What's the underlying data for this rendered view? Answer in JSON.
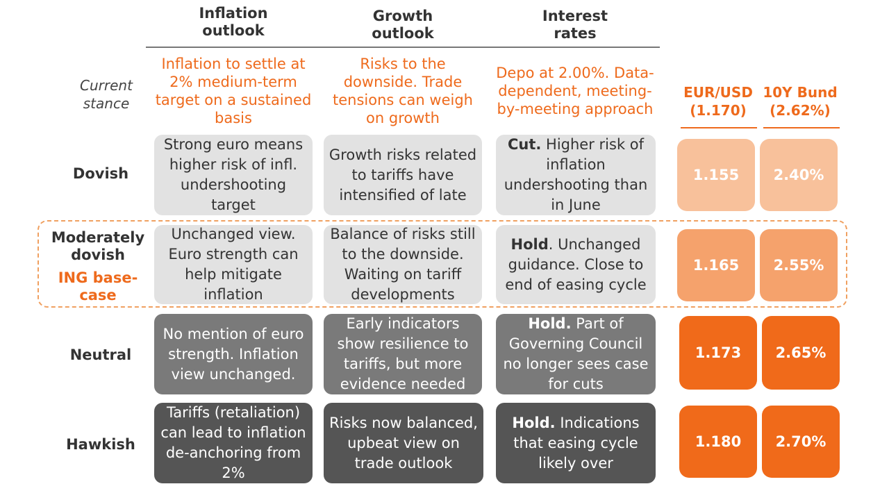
{
  "columns": [
    {
      "title": "Inflation\noutlook"
    },
    {
      "title": "Growth\noutlook"
    },
    {
      "title": "Interest\nrates"
    }
  ],
  "current": {
    "label": "Current\nstance",
    "texts": [
      "Inflation to settle at 2% medium-term target on a sustained basis",
      "Risks to the downside. Trade tensions can weigh on growth",
      "Depo at 2.00%. Data-dependent, meeting-by-meeting approach"
    ]
  },
  "markets": {
    "headers": [
      "EUR/USD\n(1.170)",
      "10Y Bund\n(2.62%)"
    ]
  },
  "scenarios": [
    {
      "label": "Dovish",
      "cells": [
        {
          "bold": "",
          "text": "Strong euro means higher risk of infl. undershooting target"
        },
        {
          "bold": "",
          "text": "Growth risks related to tariffs have intensified of late"
        },
        {
          "bold": "Cut.",
          "text": " Higher risk of inflation undershooting than in June"
        }
      ],
      "eurusd": "1.155",
      "bund": "2.40%"
    },
    {
      "label": "Moderately dovish",
      "sublabel": "ING base-case",
      "cells": [
        {
          "bold": "",
          "text": "Unchanged view. Euro strength can help mitigate inflation"
        },
        {
          "bold": "",
          "text": "Balance of risks still to the downside. Waiting on tariff developments"
        },
        {
          "bold": "Hold",
          "text": ". Unchanged guidance. Close to end of easing cycle"
        }
      ],
      "eurusd": "1.165",
      "bund": "2.55%"
    },
    {
      "label": "Neutral",
      "cells": [
        {
          "bold": "",
          "text": "No mention of euro strength. Inflation view unchanged."
        },
        {
          "bold": "",
          "text": "Early indicators show resilience to tariffs, but more evidence needed"
        },
        {
          "bold": "Hold.",
          "text": " Part of Governing Council no longer sees case for cuts"
        }
      ],
      "eurusd": "1.173",
      "bund": "2.65%"
    },
    {
      "label": "Hawkish",
      "cells": [
        {
          "bold": "",
          "text": "Tariffs (retaliation) can lead to inflation de-anchoring from 2%"
        },
        {
          "bold": "",
          "text": "Risks now balanced, upbeat view on trade outlook"
        },
        {
          "bold": "Hold.",
          "text": " Indications that easing cycle likely over"
        }
      ],
      "eurusd": "1.180",
      "bund": "2.70%"
    }
  ],
  "colors": {
    "accent": "#ee6a1c",
    "market_dovish": "#f8c19b",
    "market_moderate": "#f5a26c",
    "market_neutral": "#f06a1a",
    "market_hawkish": "#f06a1a",
    "cell_light": "#e2e2e2",
    "cell_mid": "#7a7a7a",
    "cell_dark": "#555555"
  }
}
